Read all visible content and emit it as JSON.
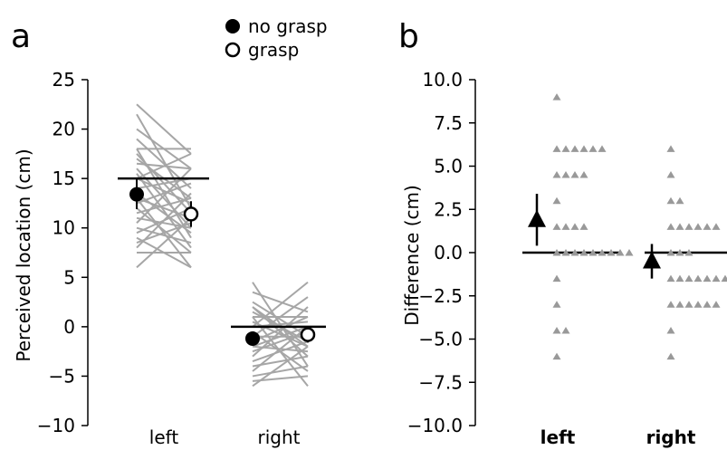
{
  "chart_data": [
    {
      "type": "scatter",
      "panel_label": "a",
      "ylabel": "Perceived location (cm)",
      "ylim": [
        -10,
        25
      ],
      "y_ticks": [
        "25",
        "20",
        "15",
        "10",
        "5",
        "0",
        "−5",
        "−10"
      ],
      "categories": [
        "left",
        "right"
      ],
      "legend": [
        {
          "label": "no grasp",
          "marker": "filled-circle"
        },
        {
          "label": "grasp",
          "marker": "open-circle"
        }
      ],
      "reference_lines": [
        {
          "category": "left",
          "y": 15.0
        },
        {
          "category": "right",
          "y": 0.0
        }
      ],
      "series": [
        {
          "name": "no grasp",
          "values": [
            13.4,
            -1.2
          ],
          "err": [
            1.5,
            0.7
          ]
        },
        {
          "name": "grasp",
          "values": [
            11.4,
            -0.8
          ],
          "err": [
            1.3,
            0.8
          ]
        }
      ],
      "paired_lines": {
        "left": [
          [
            22.5,
            17.5
          ],
          [
            21.5,
            12
          ],
          [
            20,
            16
          ],
          [
            19,
            14
          ],
          [
            18,
            18
          ],
          [
            18,
            9
          ],
          [
            17.5,
            11.5
          ],
          [
            17,
            13
          ],
          [
            16.5,
            16
          ],
          [
            16,
            10
          ],
          [
            15.5,
            8
          ],
          [
            15,
            17.5
          ],
          [
            15,
            12.5
          ],
          [
            14,
            15
          ],
          [
            13.5,
            9.5
          ],
          [
            13,
            11
          ],
          [
            12.5,
            14.5
          ],
          [
            12,
            7.5
          ],
          [
            11.5,
            13
          ],
          [
            11,
            10
          ],
          [
            10.5,
            16
          ],
          [
            10,
            8.5
          ],
          [
            9.5,
            12
          ],
          [
            9,
            6
          ],
          [
            8.5,
            10.5
          ],
          [
            8,
            13.5
          ],
          [
            7.5,
            7.5
          ],
          [
            6,
            11
          ],
          [
            13,
            6
          ]
        ],
        "right": [
          [
            4.5,
            -4
          ],
          [
            3.5,
            1.5
          ],
          [
            2.5,
            -1
          ],
          [
            2,
            -3
          ],
          [
            1.5,
            -1.5
          ],
          [
            1,
            1
          ],
          [
            0.5,
            -2
          ],
          [
            0,
            0.5
          ],
          [
            -0.5,
            -4.5
          ],
          [
            -1,
            -1
          ],
          [
            -1.5,
            1
          ],
          [
            -2,
            -2.5
          ],
          [
            -2.5,
            -0.5
          ],
          [
            -3,
            2
          ],
          [
            -3.5,
            -1.5
          ],
          [
            -4,
            -3
          ],
          [
            -4.5,
            0
          ],
          [
            -5,
            -4
          ],
          [
            -5.5,
            -5
          ],
          [
            -6,
            -2
          ],
          [
            0,
            4.5
          ],
          [
            -1,
            3
          ],
          [
            1,
            -6
          ],
          [
            -2,
            0
          ],
          [
            2,
            -2
          ]
        ]
      }
    },
    {
      "type": "scatter",
      "panel_label": "b",
      "ylabel": "Difference (cm)",
      "ylim": [
        -10.0,
        10.0
      ],
      "y_ticks": [
        "10.0",
        "7.5",
        "5.0",
        "2.5",
        "0.0",
        "−2.5",
        "−5.0",
        "−7.5",
        "−10.0"
      ],
      "categories": [
        "left",
        "right"
      ],
      "means": [
        {
          "category": "left",
          "value": 1.9,
          "err": 1.5
        },
        {
          "category": "right",
          "value": -0.5,
          "err": 1.0
        }
      ],
      "points": {
        "left": [
          9,
          6,
          6,
          6,
          6,
          6,
          6,
          4.5,
          4.5,
          4.5,
          4.5,
          3,
          1.5,
          1.5,
          1.5,
          1.5,
          0,
          0,
          0,
          0,
          0,
          0,
          0,
          0,
          0,
          -1.5,
          -3,
          -4.5,
          -4.5,
          -6
        ],
        "right": [
          6,
          4.5,
          3,
          3,
          1.5,
          1.5,
          1.5,
          1.5,
          1.5,
          1.5,
          0,
          0,
          0,
          -1.5,
          -1.5,
          -1.5,
          -1.5,
          -1.5,
          -1.5,
          -1.5,
          -3,
          -3,
          -3,
          -3,
          -3,
          -3,
          -4.5,
          -6
        ]
      }
    }
  ]
}
